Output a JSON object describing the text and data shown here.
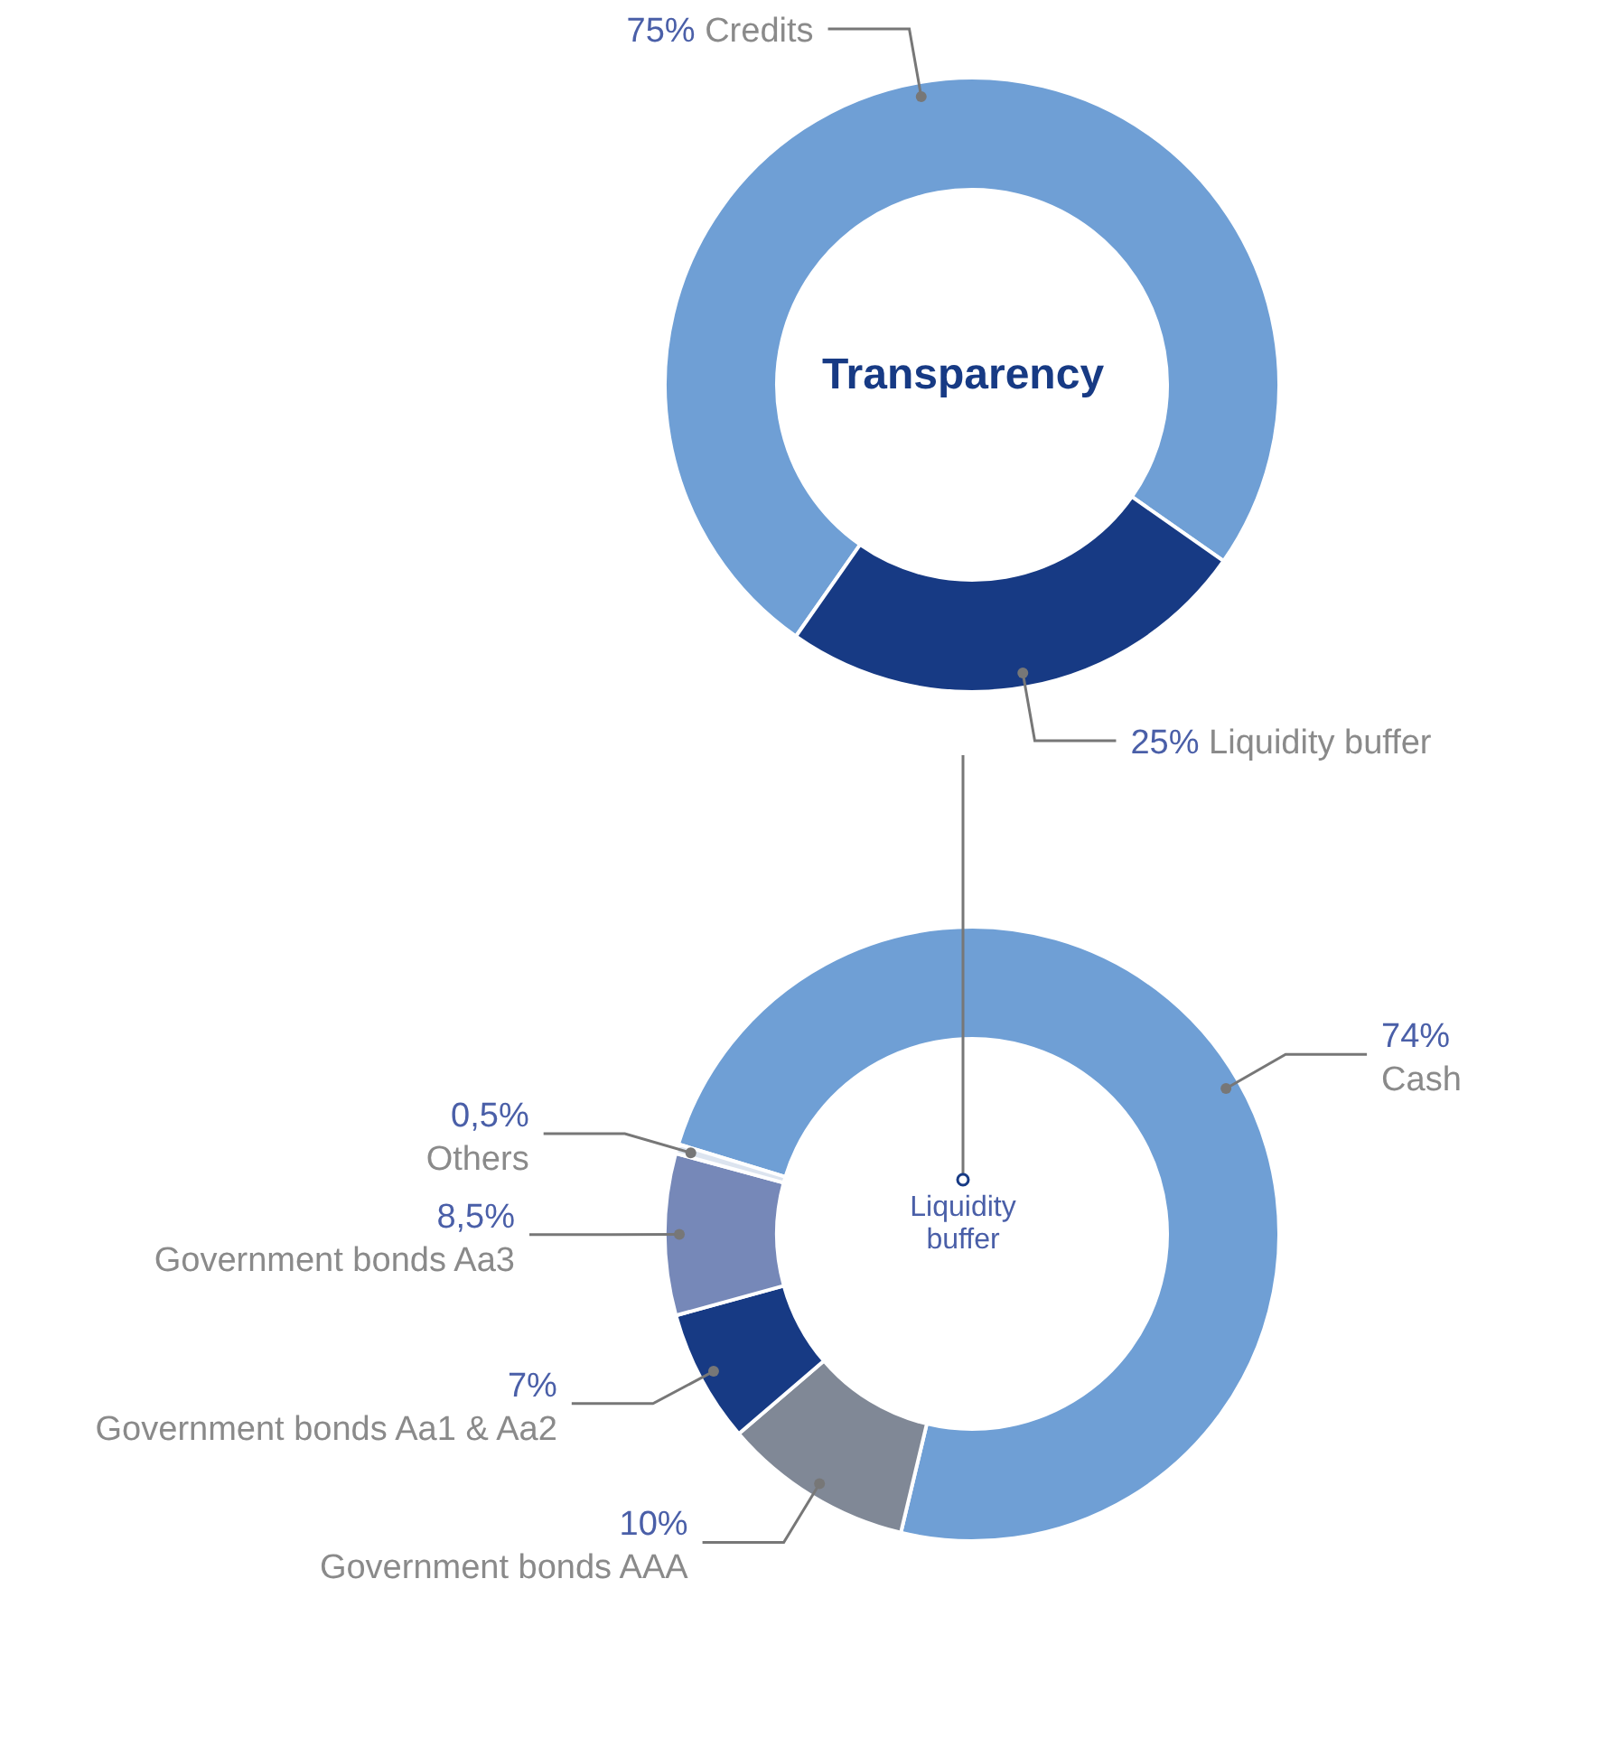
{
  "chart_data": [
    {
      "type": "donut",
      "title": "Transparency",
      "categories": [
        "Credits",
        "Liquidity buffer"
      ],
      "values": [
        75,
        25
      ],
      "colors": [
        "#6f9fd5",
        "#173a84"
      ],
      "value_labels": [
        "75%",
        "25%"
      ]
    },
    {
      "type": "donut",
      "title": "Liquidity buffer",
      "categories": [
        "Cash",
        "Government bonds AAA",
        "Government bonds Aa1 & Aa2",
        "Government bonds Aa3",
        "Others"
      ],
      "values": [
        74,
        10,
        7,
        8.5,
        0.5
      ],
      "colors": [
        "#6f9fd5",
        "#808896",
        "#173a84",
        "#7688b8",
        "#dce4ef"
      ],
      "value_labels": [
        "74%",
        "10%",
        "7%",
        "8,5%",
        "0,5%"
      ]
    }
  ]
}
